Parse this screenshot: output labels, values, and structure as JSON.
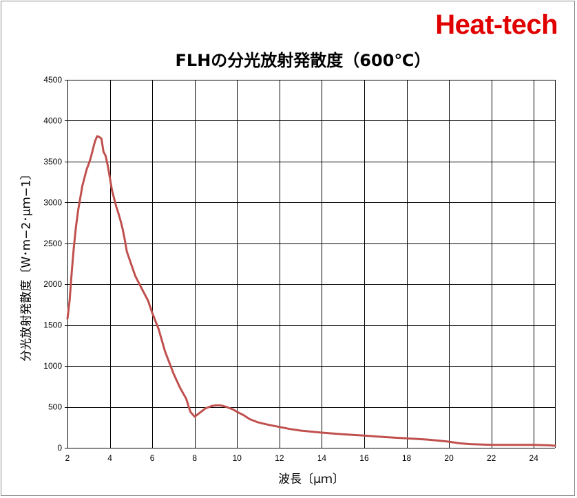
{
  "logo_text": "Heat-tech",
  "chart_data": {
    "type": "line",
    "title": "FLHの分光放射発散度（600℃）",
    "xlabel": "波長〔μｍ〕",
    "ylabel": "分光放射発散度〔W･m−2･μｍ−1〕",
    "xlim": [
      2,
      25
    ],
    "ylim": [
      0,
      4500
    ],
    "xticks": [
      2,
      4,
      6,
      8,
      10,
      12,
      14,
      16,
      18,
      20,
      22,
      24
    ],
    "yticks": [
      0,
      500,
      1000,
      1500,
      2000,
      2500,
      3000,
      3500,
      4000,
      4500
    ],
    "x_grid": [
      2,
      4,
      6,
      8,
      10,
      12,
      14,
      16,
      18,
      20,
      22,
      24
    ],
    "grid": true,
    "legend": "none",
    "series": [
      {
        "color": "#c0504d",
        "x": [
          2.0,
          2.1,
          2.2,
          2.3,
          2.4,
          2.5,
          2.6,
          2.7,
          2.8,
          2.9,
          3.0,
          3.1,
          3.2,
          3.3,
          3.4,
          3.5,
          3.6,
          3.7,
          3.8,
          3.9,
          4.0,
          4.1,
          4.2,
          4.3,
          4.4,
          4.5,
          4.6,
          4.7,
          4.8,
          5.0,
          5.2,
          5.5,
          5.8,
          6.0,
          6.3,
          6.6,
          7.0,
          7.3,
          7.6,
          7.8,
          8.0,
          8.2,
          8.5,
          8.8,
          9.0,
          9.2,
          9.5,
          9.8,
          10.0,
          10.3,
          10.6,
          11.0,
          11.5,
          12.0,
          12.5,
          13.0,
          14.0,
          15.0,
          16.0,
          17.0,
          18.0,
          19.0,
          20.0,
          20.5,
          21.0,
          22.0,
          23.0,
          24.0,
          24.7,
          25.0
        ],
        "y": [
          1580,
          1800,
          2150,
          2450,
          2700,
          2900,
          3050,
          3200,
          3300,
          3400,
          3470,
          3550,
          3650,
          3750,
          3810,
          3800,
          3780,
          3620,
          3570,
          3450,
          3300,
          3150,
          3050,
          2950,
          2870,
          2780,
          2680,
          2550,
          2400,
          2250,
          2100,
          1950,
          1800,
          1650,
          1450,
          1180,
          910,
          740,
          600,
          440,
          380,
          420,
          480,
          510,
          520,
          520,
          500,
          470,
          440,
          400,
          350,
          310,
          280,
          255,
          230,
          210,
          185,
          165,
          150,
          130,
          115,
          100,
          75,
          55,
          45,
          35,
          35,
          35,
          30,
          25
        ]
      }
    ]
  }
}
